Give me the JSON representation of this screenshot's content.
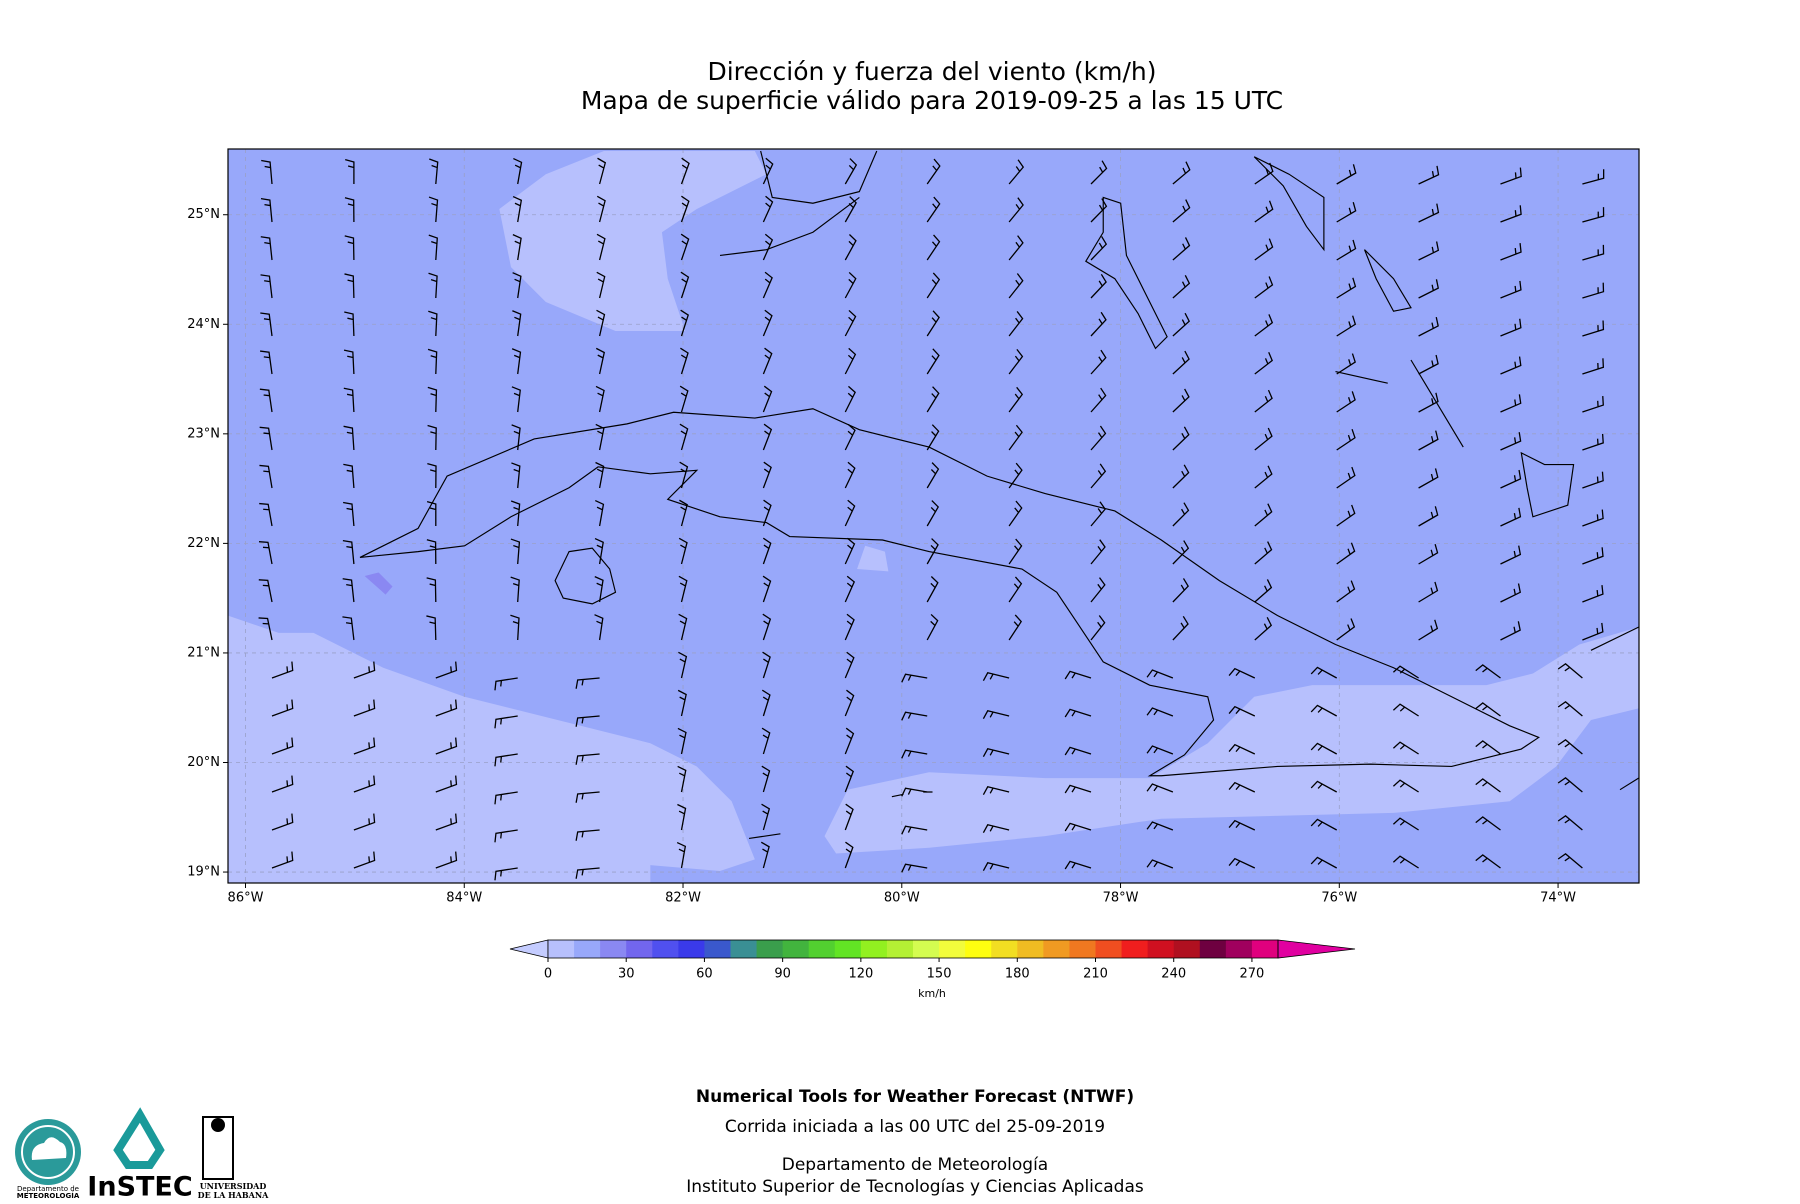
{
  "title_lines": [
    "Dirección y fuerza del viento (km/h)",
    "Mapa de superficie válido para 2019-09-25 a las 15 UTC"
  ],
  "map": {
    "xlim": [
      -86.16,
      -73.26
    ],
    "ylim": [
      18.9,
      25.6
    ],
    "xticks": [
      {
        "value": -86,
        "label": "86°W"
      },
      {
        "value": -84,
        "label": "84°W"
      },
      {
        "value": -82,
        "label": "82°W"
      },
      {
        "value": -80,
        "label": "80°W"
      },
      {
        "value": -78,
        "label": "78°W"
      },
      {
        "value": -76,
        "label": "76°W"
      },
      {
        "value": -74,
        "label": "74°W"
      }
    ],
    "yticks": [
      {
        "value": 19,
        "label": "19°N"
      },
      {
        "value": 20,
        "label": "20°N"
      },
      {
        "value": 21,
        "label": "21°N"
      },
      {
        "value": 22,
        "label": "22°N"
      },
      {
        "value": 23,
        "label": "23°N"
      },
      {
        "value": 24,
        "label": "24°N"
      },
      {
        "value": 25,
        "label": "25°N"
      }
    ],
    "grid": true
  },
  "colorbar": {
    "clim": [
      0,
      280
    ],
    "ticks": [
      0,
      30,
      60,
      90,
      120,
      150,
      180,
      210,
      240,
      270
    ],
    "label": "km/h",
    "colors": [
      "#b7c0fd",
      "#98a8fa",
      "#8a88f2",
      "#7266ee",
      "#5050ef",
      "#3a3aea",
      "#3a58cc",
      "#3a8f94",
      "#3a9e4c",
      "#42b43e",
      "#52d030",
      "#62e424",
      "#92f020",
      "#b4f034",
      "#d4fc50",
      "#f2fc3c",
      "#fefe10",
      "#f2de22",
      "#f0bc22",
      "#f09a22",
      "#f07820",
      "#f04e20",
      "#f01e1e",
      "#d01020",
      "#b01020",
      "#6e0040",
      "#a0005e",
      "#e0007e"
    ],
    "under_color": "#c4ccff",
    "over_color": "#e000a0"
  },
  "footer": {
    "heading": "Numerical Tools for Weather Forecast (NTWF)",
    "run": "Corrida iniciada a las 00 UTC  del 25-09-2019",
    "dept": "Departamento de Meteorología",
    "institute": "Instituto Superior de Tecnologías y Ciencias Aplicadas"
  },
  "logos": {
    "dept_line1": "Departamento de",
    "dept_line2": "METEOROLOGÍA",
    "instec": "InSTEC",
    "uh_line1": "UNIVERSIDAD",
    "uh_line2": "DE LA HABANA"
  }
}
